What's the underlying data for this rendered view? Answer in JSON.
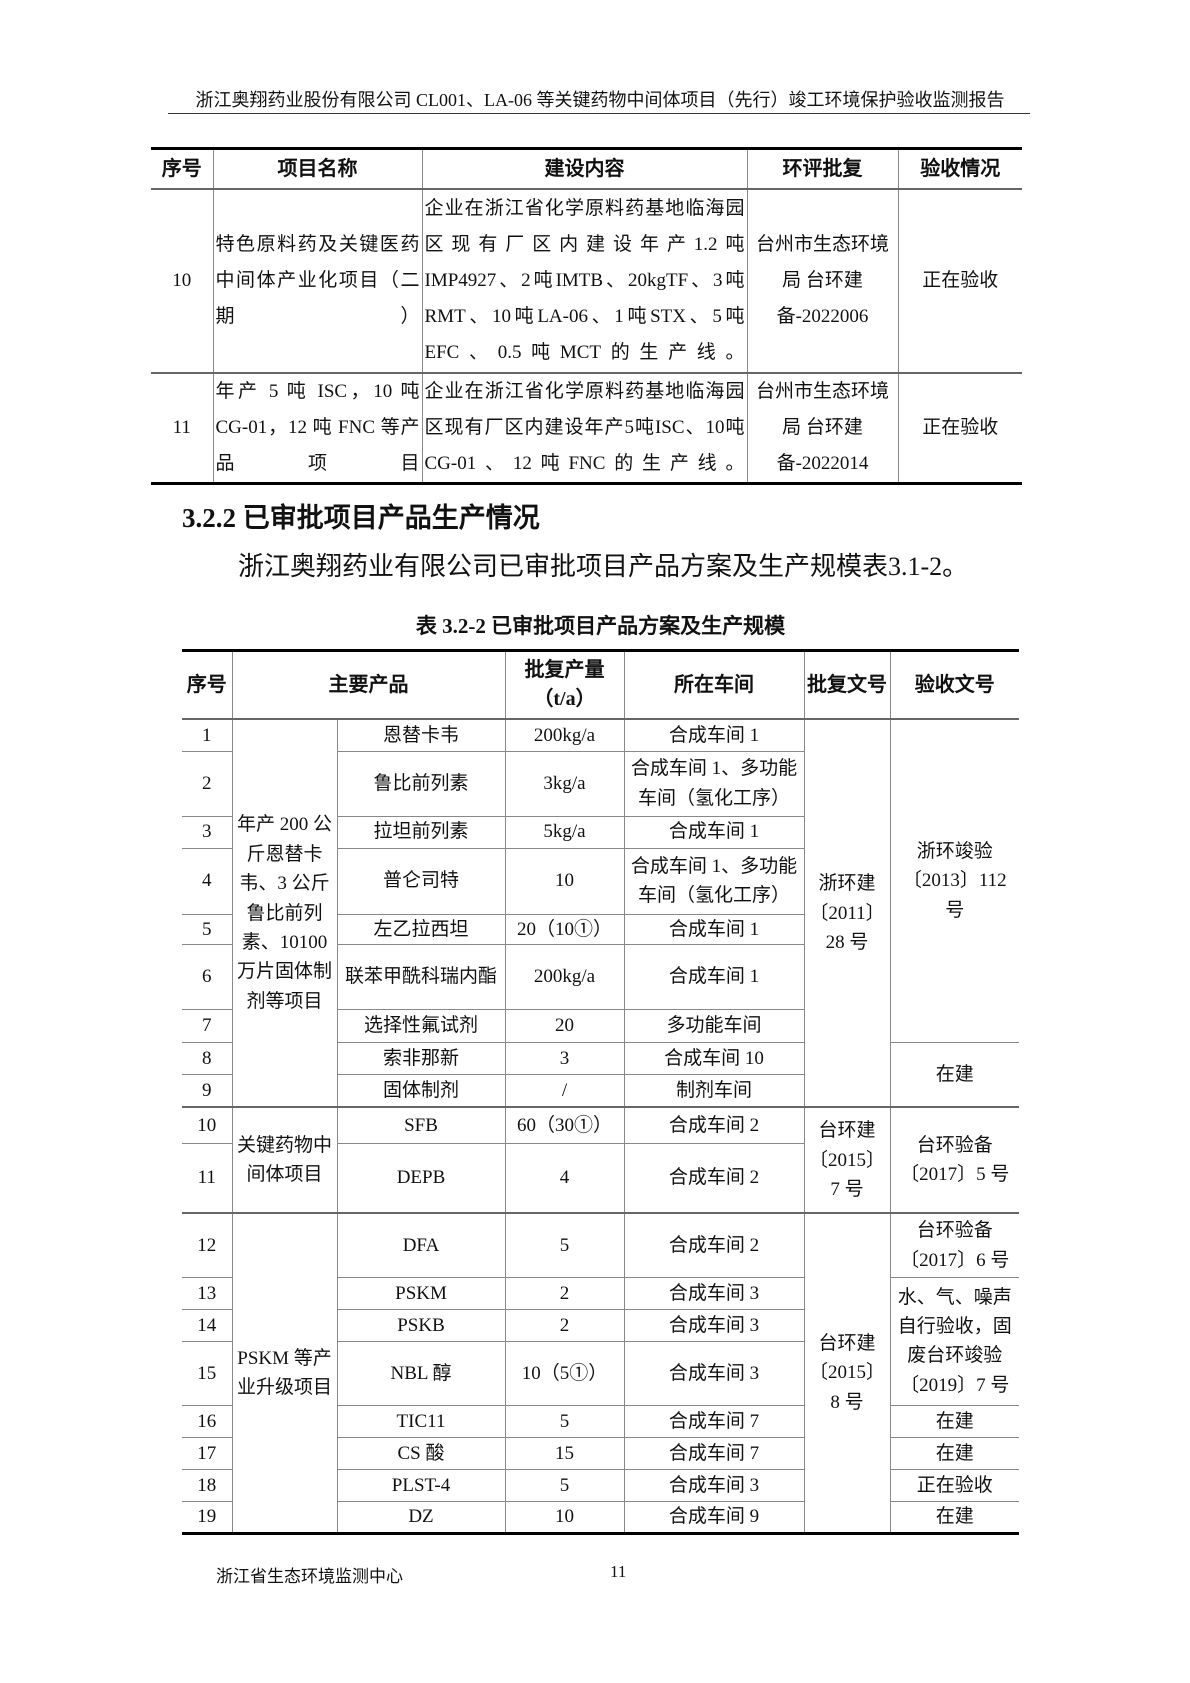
{
  "header": {
    "title": "浙江奥翔药业股份有限公司 CL001、LA-06 等关键药物中间体项目（先行）竣工环境保护验收监测报告"
  },
  "table1": {
    "columns": [
      "序号",
      "项目名称",
      "建设内容",
      "环评批复",
      "验收情况"
    ],
    "rows": [
      {
        "no": "10",
        "name": "特色原料药及关键医药中间体产业化项目（二期）",
        "content": "企业在浙江省化学原料药基地临海园区现有厂区内建设年产1.2吨IMP4927、2吨IMTB、20kgTF、3吨RMT、10吨LA-06、1吨STX、5吨EFC、0.5吨MCT的生产线。",
        "approval": "台州市生态环境局 台环建备-2022006",
        "status": "正在验收"
      },
      {
        "no": "11",
        "name": "年产 5 吨 ISC，10 吨 CG-01，12 吨 FNC 等产品项目",
        "content": "企业在浙江省化学原料药基地临海园区现有厂区内建设年产5吨ISC、10吨CG-01、12吨FNC的生产线。",
        "approval": "台州市生态环境局 台环建备-2022014",
        "status": "正在验收"
      }
    ]
  },
  "section": {
    "heading": "3.2.2 已审批项目产品生产情况",
    "paragraph": "浙江奥翔药业有限公司已审批项目产品方案及生产规模表3.1-2。"
  },
  "table2": {
    "caption": "表 3.2-2  已审批项目产品方案及生产规模",
    "columns": [
      "序号",
      "主要产品",
      "批复产量（t/a）",
      "所在车间",
      "批复文号",
      "验收文号"
    ],
    "rows": [
      {
        "no": "1",
        "product": "恩替卡韦",
        "qty": "200kg/a",
        "workshop": "合成车间 1"
      },
      {
        "no": "2",
        "product": "鲁比前列素",
        "qty": "3kg/a",
        "workshop": "合成车间 1、多功能车间（氢化工序）"
      },
      {
        "no": "3",
        "product": "拉坦前列素",
        "qty": "5kg/a",
        "workshop": "合成车间 1"
      },
      {
        "no": "4",
        "product": "普仑司特",
        "qty": "10",
        "workshop": "合成车间 1、多功能车间（氢化工序）"
      },
      {
        "no": "5",
        "product": "左乙拉西坦",
        "qty": "20（10①）",
        "workshop": "合成车间 1"
      },
      {
        "no": "6",
        "product": "联苯甲酰科瑞内酯",
        "qty": "200kg/a",
        "workshop": "合成车间 1"
      },
      {
        "no": "7",
        "product": "选择性氟试剂",
        "qty": "20",
        "workshop": "多功能车间"
      },
      {
        "no": "8",
        "product": "索非那新",
        "qty": "3",
        "workshop": "合成车间 10"
      },
      {
        "no": "9",
        "product": "固体制剂",
        "qty": "/",
        "workshop": "制剂车间"
      },
      {
        "no": "10",
        "product": "SFB",
        "qty": "60（30①）",
        "workshop": "合成车间 2"
      },
      {
        "no": "11",
        "product": "DEPB",
        "qty": "4",
        "workshop": "合成车间 2"
      },
      {
        "no": "12",
        "product": "DFA",
        "qty": "5",
        "workshop": "合成车间 2"
      },
      {
        "no": "13",
        "product": "PSKM",
        "qty": "2",
        "workshop": "合成车间 3"
      },
      {
        "no": "14",
        "product": "PSKB",
        "qty": "2",
        "workshop": "合成车间 3"
      },
      {
        "no": "15",
        "product": "NBL 醇",
        "qty": "10（5①）",
        "workshop": "合成车间 3"
      },
      {
        "no": "16",
        "product": "TIC11",
        "qty": "5",
        "workshop": "合成车间 7"
      },
      {
        "no": "17",
        "product": "CS 酸",
        "qty": "15",
        "workshop": "合成车间 7"
      },
      {
        "no": "18",
        "product": "PLST-4",
        "qty": "5",
        "workshop": "合成车间 3"
      },
      {
        "no": "19",
        "product": "DZ",
        "qty": "10",
        "workshop": "合成车间 9"
      }
    ],
    "groups": [
      {
        "start": 0,
        "span": 9,
        "label": "年产 200 公斤恩替卡韦、3 公斤鲁比前列素、10100 万片固体制剂等项目"
      },
      {
        "start": 9,
        "span": 2,
        "label": "关键药物中间体项目"
      },
      {
        "start": 11,
        "span": 8,
        "label": "PSKM 等产业升级项目"
      }
    ],
    "approvals": [
      {
        "start": 0,
        "span": 9,
        "label": "浙环建〔2011〕28 号"
      },
      {
        "start": 9,
        "span": 2,
        "label": "台环建〔2015〕7 号"
      },
      {
        "start": 11,
        "span": 8,
        "label": "台环建〔2015〕8 号"
      }
    ],
    "acceptances": [
      {
        "start": 0,
        "span": 7,
        "label": "浙环竣验〔2013〕112 号"
      },
      {
        "start": 7,
        "span": 2,
        "label": "在建"
      },
      {
        "start": 9,
        "span": 2,
        "label": "台环验备〔2017〕5 号"
      },
      {
        "start": 11,
        "span": 1,
        "label": "台环验备〔2017〕6 号"
      },
      {
        "start": 12,
        "span": 3,
        "label": "水、气、噪声自行验收，固废台环竣验〔2019〕7 号"
      },
      {
        "start": 15,
        "span": 1,
        "label": "在建"
      },
      {
        "start": 16,
        "span": 1,
        "label": "在建"
      },
      {
        "start": 17,
        "span": 1,
        "label": "正在验收"
      },
      {
        "start": 18,
        "span": 1,
        "label": "在建"
      }
    ]
  },
  "footer": {
    "org": "浙江省生态环境监测中心",
    "page": "11"
  }
}
